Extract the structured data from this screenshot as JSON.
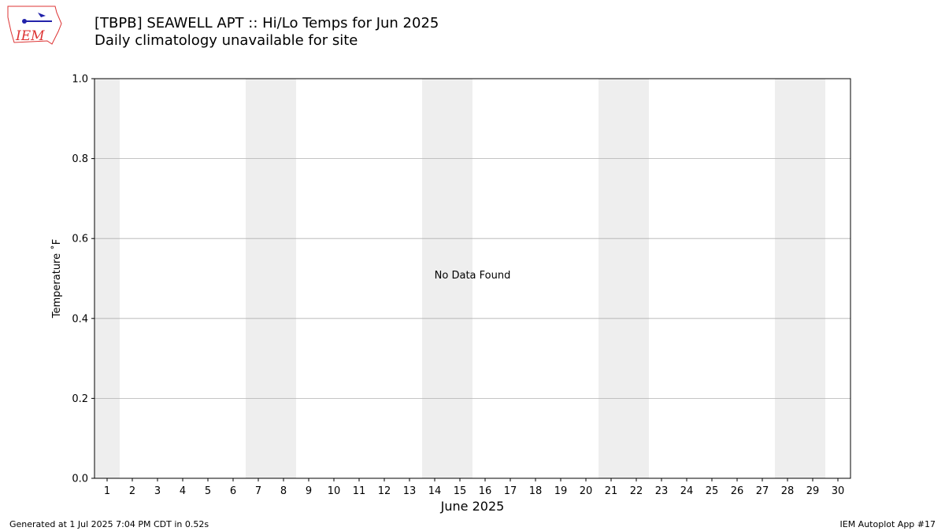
{
  "chart_data": {
    "type": "line",
    "title": "[TBPB] SEAWELL APT :: Hi/Lo Temps for Jun 2025",
    "subtitle": "Daily climatology unavailable for site",
    "xlabel": "June 2025",
    "ylabel": "Temperature ˚F",
    "annotation": "No Data Found",
    "xlim": [
      0.5,
      30.5
    ],
    "xticks": [
      1,
      2,
      3,
      4,
      5,
      6,
      7,
      8,
      9,
      10,
      11,
      12,
      13,
      14,
      15,
      16,
      17,
      18,
      19,
      20,
      21,
      22,
      23,
      24,
      25,
      26,
      27,
      28,
      29,
      30
    ],
    "ylim": [
      0,
      1
    ],
    "yticks": [
      {
        "value": 0,
        "label": "0.0"
      },
      {
        "value": 0.2,
        "label": "0.2"
      },
      {
        "value": 0.4,
        "label": "0.4"
      },
      {
        "value": 0.6,
        "label": "0.6"
      },
      {
        "value": 0.8,
        "label": "0.8"
      },
      {
        "value": 1,
        "label": "1.0"
      }
    ],
    "shaded_spans": [
      [
        0.5,
        1.5
      ],
      [
        6.5,
        8.5
      ],
      [
        13.5,
        15.5
      ],
      [
        20.5,
        22.5
      ],
      [
        27.5,
        29.5
      ]
    ],
    "shade_color": "#eeeeee",
    "grid": true,
    "series": []
  },
  "logo_text": "IEM",
  "footer_left": "Generated at 1 Jul 2025 7:04 PM CDT in 0.52s",
  "footer_right": "IEM Autoplot App #17"
}
